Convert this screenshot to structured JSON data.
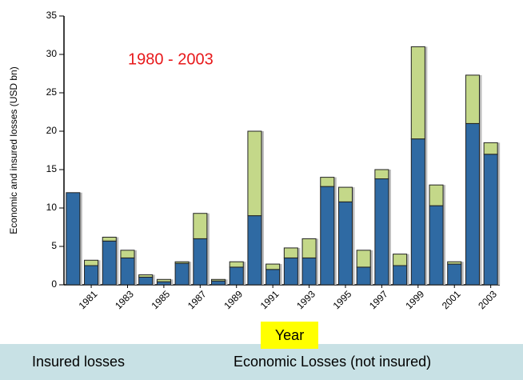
{
  "chart_data": {
    "type": "stacked-bar",
    "annotation": "1980 - 2003",
    "x_label": "Year",
    "y_label": "Economic and insured losses (USD bn)",
    "categories": [
      null,
      "1981",
      null,
      "1983",
      null,
      "1985",
      null,
      "1987",
      null,
      "1989",
      null,
      "1991",
      null,
      "1993",
      null,
      "1995",
      null,
      "1997",
      null,
      "1999",
      null,
      "2001",
      null,
      "2003"
    ],
    "series": [
      {
        "name": "Insured losses",
        "color": "#2f6aa3",
        "values": [
          12,
          2.5,
          5.7,
          3.5,
          1.0,
          0.4,
          2.8,
          6.0,
          0.5,
          2.3,
          9.0,
          2.0,
          3.5,
          3.5,
          12.8,
          10.8,
          2.3,
          13.8,
          2.5,
          19,
          10.3,
          2.7,
          21,
          17
        ]
      },
      {
        "name": "Economic Losses (not insured)",
        "color": "#c4d889",
        "values": [
          0,
          0.7,
          0.5,
          1.0,
          0.3,
          0.3,
          0.2,
          3.3,
          0.2,
          0.7,
          11,
          0.7,
          1.3,
          2.5,
          1.2,
          1.9,
          2.2,
          1.2,
          1.5,
          12,
          2.7,
          0.3,
          6.3,
          1.5
        ]
      }
    ],
    "ylim": [
      0,
      35
    ],
    "yticks": [
      0,
      5,
      10,
      15,
      20,
      25,
      30,
      35
    ]
  }
}
